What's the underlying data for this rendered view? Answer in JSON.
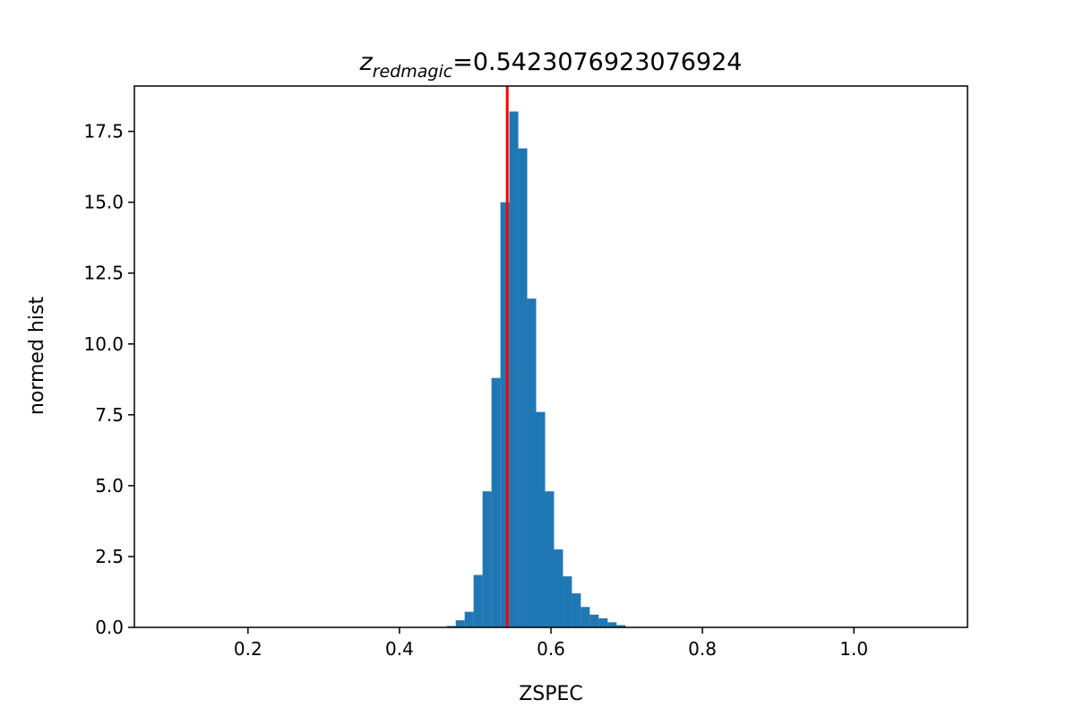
{
  "chart_data": {
    "type": "bar",
    "title_symbol": "z",
    "title_subscript": "redmagic",
    "title_value": "=0.5423076923076924",
    "xlabel": "ZSPEC",
    "ylabel": "normed hist",
    "xlim": [
      0.05,
      1.15
    ],
    "ylim": [
      0,
      19.1
    ],
    "xticks": [
      0.2,
      0.4,
      0.6,
      0.8,
      1.0
    ],
    "xtick_labels": [
      "0.2",
      "0.4",
      "0.6",
      "0.8",
      "1.0"
    ],
    "yticks": [
      0.0,
      2.5,
      5.0,
      7.5,
      10.0,
      12.5,
      15.0,
      17.5
    ],
    "ytick_labels": [
      "0.0",
      "2.5",
      "5.0",
      "7.5",
      "10.0",
      "12.5",
      "15.0",
      "17.5"
    ],
    "grid": false,
    "legend": "none",
    "bin_width": 0.0118,
    "bins": [
      {
        "x": 0.4625,
        "y": 0.05
      },
      {
        "x": 0.4743,
        "y": 0.25
      },
      {
        "x": 0.4861,
        "y": 0.55
      },
      {
        "x": 0.4979,
        "y": 1.85
      },
      {
        "x": 0.5097,
        "y": 4.8
      },
      {
        "x": 0.5215,
        "y": 8.8
      },
      {
        "x": 0.5333,
        "y": 15.0
      },
      {
        "x": 0.5451,
        "y": 18.2
      },
      {
        "x": 0.5569,
        "y": 16.9
      },
      {
        "x": 0.5687,
        "y": 11.6
      },
      {
        "x": 0.5805,
        "y": 7.6
      },
      {
        "x": 0.5923,
        "y": 4.8
      },
      {
        "x": 0.6041,
        "y": 2.75
      },
      {
        "x": 0.6159,
        "y": 1.8
      },
      {
        "x": 0.6277,
        "y": 1.2
      },
      {
        "x": 0.6395,
        "y": 0.72
      },
      {
        "x": 0.6513,
        "y": 0.45
      },
      {
        "x": 0.6631,
        "y": 0.32
      },
      {
        "x": 0.6749,
        "y": 0.18
      },
      {
        "x": 0.6867,
        "y": 0.08
      }
    ],
    "vline_x": 0.5423076923076924,
    "colors": {
      "bars": "#1f77b4",
      "vline": "#ff0000",
      "axes": "#000000"
    }
  }
}
